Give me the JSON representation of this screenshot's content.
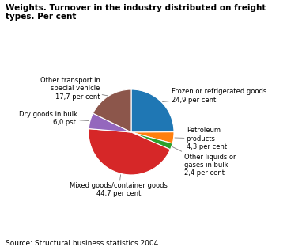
{
  "chart_data": {
    "type": "pie",
    "title": "Weights. Turnover in the industry distributed on freight\ntypes. Per cent",
    "categories": [
      "Frozen or refrigerated goods\n24,9 per cent",
      "Petroleum\nproducts\n4,3 per cent",
      "Other liquids or\ngases in bulk\n2,4 per cent",
      "Mixed goods/container goods\n44,7 per cent",
      "Dry goods in bulk\n6,0 pst.",
      "Other transport in\nspecial vehicle\n17,7 per cent"
    ],
    "values": [
      24.9,
      4.3,
      2.4,
      44.7,
      6.0,
      17.7
    ],
    "annotations": [
      "Source: Structural business statistics 2004."
    ]
  }
}
